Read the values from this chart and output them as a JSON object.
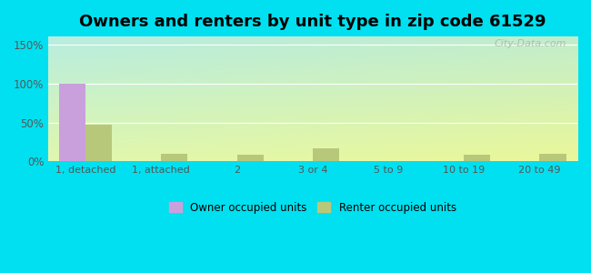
{
  "title": "Owners and renters by unit type in zip code 61529",
  "categories": [
    "1, detached",
    "1, attached",
    "2",
    "3 or 4",
    "5 to 9",
    "10 to 19",
    "20 to 49"
  ],
  "owner_values": [
    100,
    1,
    0,
    0,
    0,
    0,
    0
  ],
  "renter_values": [
    47,
    10,
    9,
    17,
    0,
    9,
    10
  ],
  "owner_color": "#c9a0dc",
  "renter_color": "#b8c87a",
  "ylim": [
    0,
    160
  ],
  "yticks": [
    0,
    50,
    100,
    150
  ],
  "ytick_labels": [
    "0%",
    "50%",
    "100%",
    "150%"
  ],
  "background_outer": "#00e0f0",
  "title_fontsize": 13,
  "bar_width": 0.35,
  "watermark": "City-Data.com",
  "legend_owner": "Owner occupied units",
  "legend_renter": "Renter occupied units"
}
